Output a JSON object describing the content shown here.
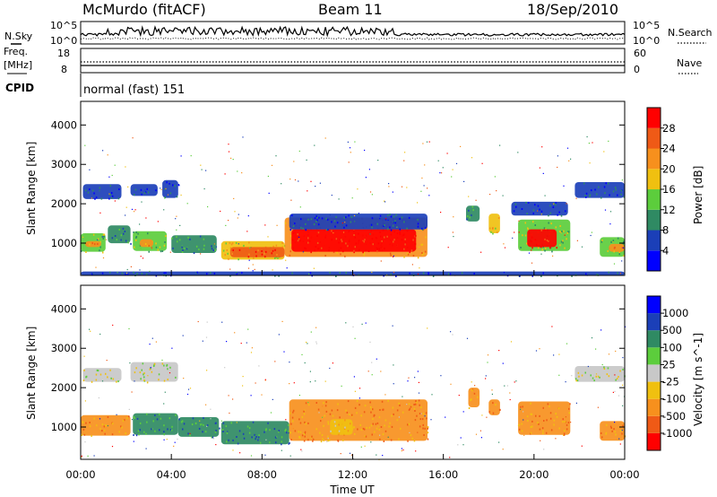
{
  "header": {
    "radar": "McMurdo (fitACF)",
    "beam": "Beam 11",
    "date": "18/Sep/2010"
  },
  "noise_panel": {
    "left_label": "N.Sky",
    "right_label": "N.Search",
    "left_ticks": [
      "10^5",
      "10^0"
    ],
    "right_ticks": [
      "10^5",
      "10^0"
    ]
  },
  "freq_panel": {
    "left_label_1": "Freq.",
    "left_label_2": "[MHz]",
    "right_label": "Nave",
    "left_ticks": [
      "18",
      "8"
    ],
    "right_ticks": [
      "60",
      "0"
    ]
  },
  "cpid_panel": {
    "label": "CPID",
    "value": "normal (fast) 151"
  },
  "colors": {
    "power_scale": [
      "#0000ff",
      "#1b3fb8",
      "#2f8a63",
      "#5ccd3c",
      "#f0c010",
      "#f7901d",
      "#ef5a16",
      "#ff0000"
    ],
    "velocity_scale": [
      "#ff0000",
      "#ef5a16",
      "#f7901d",
      "#f0c010",
      "#c8c8c8",
      "#5ccd3c",
      "#2f8a63",
      "#1b3fb8",
      "#0000ff"
    ]
  },
  "chart_data": [
    {
      "type": "heatmap",
      "panel": "power",
      "xlabel": "Time UT",
      "ylabel": "Slant Range [km]",
      "colorbar_label": "Power [dB]",
      "colorbar_ticks": [
        "4",
        "8",
        "12",
        "16",
        "20",
        "24",
        "28"
      ],
      "x_ticks": [
        "00:00",
        "04:00",
        "08:00",
        "12:00",
        "16:00",
        "20:00",
        "00:00"
      ],
      "y_ticks": [
        "1000",
        "2000",
        "3000",
        "4000"
      ],
      "xlim_hours": [
        0,
        24
      ],
      "ylim_km": [
        180,
        4600
      ],
      "regions": [
        {
          "t0": 0.1,
          "t1": 1.8,
          "r0": 2120,
          "r1": 2500,
          "level": 1
        },
        {
          "t0": 2.2,
          "t1": 3.4,
          "r0": 2200,
          "r1": 2500,
          "level": 1
        },
        {
          "t0": 3.6,
          "t1": 4.3,
          "r0": 2150,
          "r1": 2600,
          "level": 1
        },
        {
          "t0": 0.0,
          "t1": 1.1,
          "r0": 780,
          "r1": 1250,
          "level": 3
        },
        {
          "t0": 0.2,
          "t1": 0.9,
          "r0": 900,
          "r1": 1050,
          "level": 5
        },
        {
          "t0": 1.2,
          "t1": 2.2,
          "r0": 1000,
          "r1": 1450,
          "level": 2
        },
        {
          "t0": 2.3,
          "t1": 3.8,
          "r0": 800,
          "r1": 1300,
          "level": 3
        },
        {
          "t0": 2.6,
          "t1": 3.2,
          "r0": 900,
          "r1": 1100,
          "level": 5
        },
        {
          "t0": 4.0,
          "t1": 6.0,
          "r0": 750,
          "r1": 1200,
          "level": 2
        },
        {
          "t0": 6.2,
          "t1": 9.0,
          "r0": 580,
          "r1": 1050,
          "level": 4
        },
        {
          "t0": 6.6,
          "t1": 9.0,
          "r0": 640,
          "r1": 900,
          "level": 6
        },
        {
          "t0": 9.0,
          "t1": 15.3,
          "r0": 650,
          "r1": 1650,
          "level": 5
        },
        {
          "t0": 9.3,
          "t1": 14.8,
          "r0": 780,
          "r1": 1350,
          "level": 7
        },
        {
          "t0": 9.2,
          "t1": 15.3,
          "r0": 1350,
          "r1": 1750,
          "level": 1
        },
        {
          "t0": 17.0,
          "t1": 17.6,
          "r0": 1550,
          "r1": 1950,
          "level": 2
        },
        {
          "t0": 18.0,
          "t1": 18.5,
          "r0": 1250,
          "r1": 1750,
          "level": 4
        },
        {
          "t0": 19.3,
          "t1": 21.6,
          "r0": 800,
          "r1": 1600,
          "level": 3
        },
        {
          "t0": 19.7,
          "t1": 21.0,
          "r0": 900,
          "r1": 1350,
          "level": 7
        },
        {
          "t0": 19.0,
          "t1": 21.5,
          "r0": 1700,
          "r1": 2050,
          "level": 1
        },
        {
          "t0": 21.8,
          "t1": 24.0,
          "r0": 2150,
          "r1": 2550,
          "level": 1
        },
        {
          "t0": 22.9,
          "t1": 24.0,
          "r0": 650,
          "r1": 1150,
          "level": 3
        },
        {
          "t0": 23.3,
          "t1": 24.0,
          "r0": 780,
          "r1": 980,
          "level": 5
        },
        {
          "t0": 0.0,
          "t1": 24.0,
          "r0": 180,
          "r1": 280,
          "level": 1
        }
      ]
    },
    {
      "type": "heatmap",
      "panel": "velocity",
      "xlabel": "Time UT",
      "ylabel": "Slant Range [km]",
      "colorbar_label": "Velocity [m s^-1]",
      "colorbar_ticks": [
        "-1000",
        "-500",
        "-100",
        "-25",
        "25",
        "100",
        "500",
        "1000"
      ],
      "x_ticks": [
        "00:00",
        "04:00",
        "08:00",
        "12:00",
        "16:00",
        "20:00",
        "00:00"
      ],
      "y_ticks": [
        "1000",
        "2000",
        "3000",
        "4000"
      ],
      "xlim_hours": [
        0,
        24
      ],
      "ylim_km": [
        180,
        4600
      ],
      "regions": [
        {
          "t0": 0.1,
          "t1": 1.8,
          "r0": 2150,
          "r1": 2500,
          "level": 4
        },
        {
          "t0": 2.2,
          "t1": 4.3,
          "r0": 2150,
          "r1": 2650,
          "level": 4
        },
        {
          "t0": 0.0,
          "t1": 2.2,
          "r0": 780,
          "r1": 1300,
          "level": 2
        },
        {
          "t0": 2.3,
          "t1": 4.3,
          "r0": 800,
          "r1": 1350,
          "level": 6
        },
        {
          "t0": 4.3,
          "t1": 6.1,
          "r0": 750,
          "r1": 1250,
          "level": 6
        },
        {
          "t0": 6.2,
          "t1": 9.2,
          "r0": 560,
          "r1": 1150,
          "level": 6
        },
        {
          "t0": 9.2,
          "t1": 15.3,
          "r0": 650,
          "r1": 1700,
          "level": 2
        },
        {
          "t0": 11.0,
          "t1": 12.0,
          "r0": 800,
          "r1": 1200,
          "level": 3
        },
        {
          "t0": 17.1,
          "t1": 17.6,
          "r0": 1500,
          "r1": 2000,
          "level": 2
        },
        {
          "t0": 18.0,
          "t1": 18.5,
          "r0": 1300,
          "r1": 1700,
          "level": 2
        },
        {
          "t0": 19.3,
          "t1": 21.6,
          "r0": 800,
          "r1": 1650,
          "level": 2
        },
        {
          "t0": 21.8,
          "t1": 24.0,
          "r0": 2150,
          "r1": 2550,
          "level": 4
        },
        {
          "t0": 22.9,
          "t1": 24.0,
          "r0": 650,
          "r1": 1150,
          "level": 2
        }
      ]
    }
  ]
}
